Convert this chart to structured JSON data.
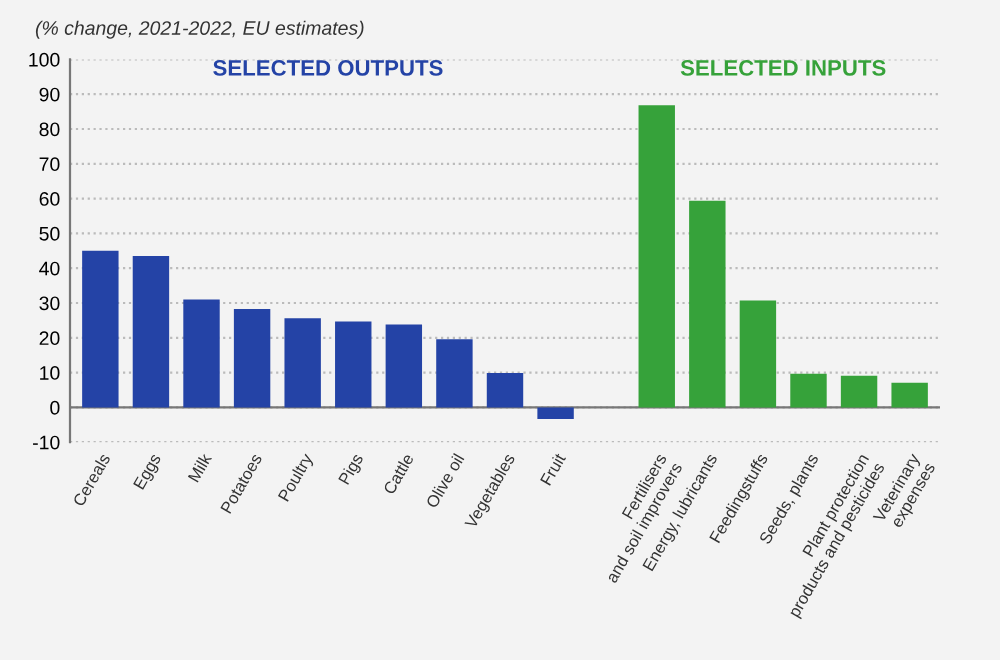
{
  "chart_data": {
    "type": "bar",
    "subtitle": "(% change, 2021-2022, EU estimates)",
    "categories": [
      "Cereals",
      "Eggs",
      "Milk",
      "Potatoes",
      "Poultry",
      "Pigs",
      "Cattle",
      "Olive oil",
      "Vegetables",
      "Fruit",
      null,
      "Fertilisers\nand soil improvers",
      "Energy, lubricants",
      "Feedingstuffs",
      "Seeds, plants",
      "Plant protection\nproducts and pesticides",
      "Veterinary\nexpenses"
    ],
    "series": [
      {
        "name": "SELECTED OUTPUTS",
        "color": "#2443a6",
        "values": [
          45,
          43.5,
          31,
          28.3,
          25.6,
          24.7,
          23.8,
          19.6,
          9.9,
          -3.3,
          null,
          null,
          null,
          null,
          null,
          null,
          null
        ]
      },
      {
        "name": "SELECTED INPUTS",
        "color": "#36a23a",
        "values": [
          null,
          null,
          null,
          null,
          null,
          null,
          null,
          null,
          null,
          null,
          null,
          86.8,
          59.4,
          30.7,
          9.7,
          9.1,
          7.1
        ]
      }
    ],
    "ylim": [
      -10,
      100
    ],
    "yticks": [
      -10,
      0,
      10,
      20,
      30,
      40,
      50,
      60,
      70,
      80,
      90,
      100
    ],
    "grid": "y"
  }
}
